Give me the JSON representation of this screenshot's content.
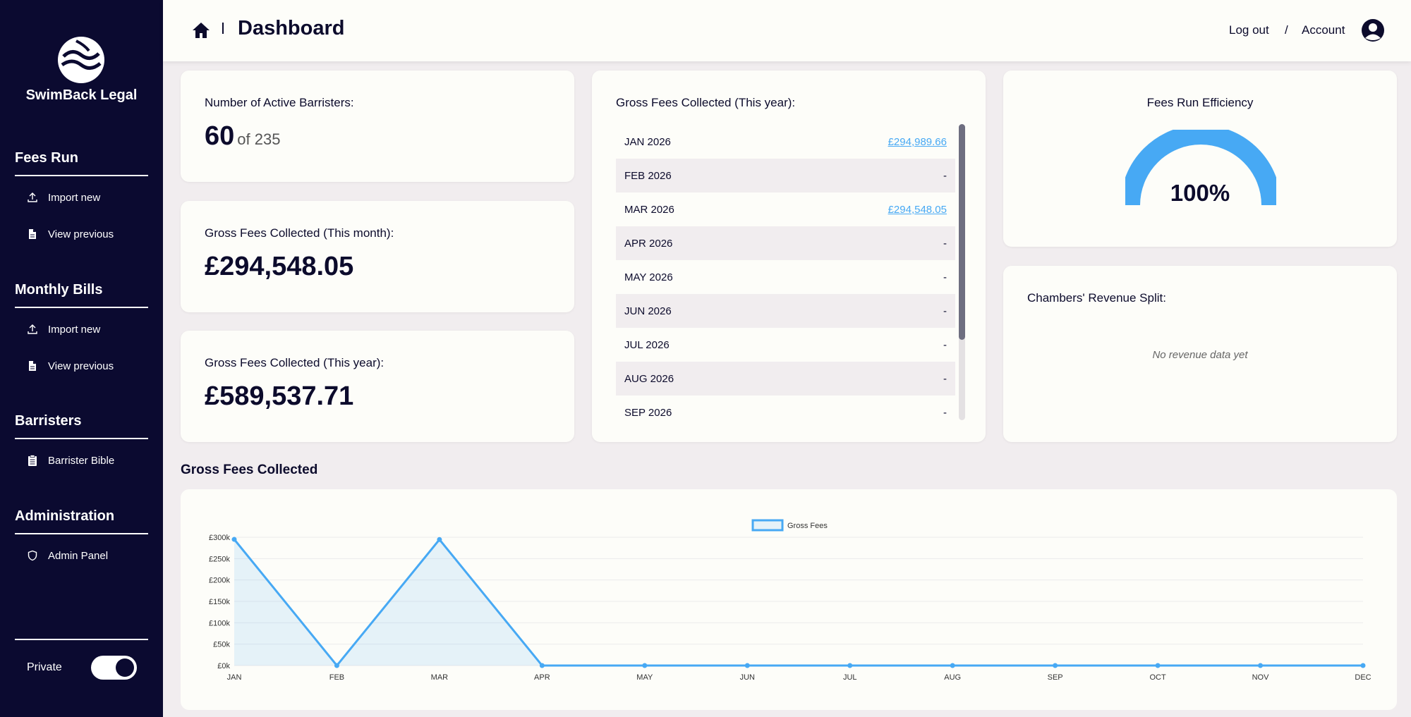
{
  "sidebar": {
    "brand": "SwimBack Legal",
    "sections": [
      {
        "title": "Fees Run",
        "items": [
          {
            "label": "Import new",
            "icon": "upload-icon"
          },
          {
            "label": "View previous",
            "icon": "file-icon"
          }
        ]
      },
      {
        "title": "Monthly Bills",
        "items": [
          {
            "label": "Import new",
            "icon": "upload-icon"
          },
          {
            "label": "View previous",
            "icon": "file-icon"
          }
        ]
      },
      {
        "title": "Barristers",
        "items": [
          {
            "label": "Barrister Bible",
            "icon": "clipboard-icon"
          }
        ]
      },
      {
        "title": "Administration",
        "items": [
          {
            "label": "Admin Panel",
            "icon": "shield-icon"
          }
        ]
      }
    ],
    "private_label": "Private",
    "private_toggle_on": true
  },
  "header": {
    "title": "Dashboard",
    "logout": "Log out",
    "separator": "/",
    "account": "Account"
  },
  "cards": {
    "barristers": {
      "label": "Number of Active Barristers:",
      "value": "60",
      "of": "of 235"
    },
    "month": {
      "label": "Gross Fees Collected (This month):",
      "value": "£294,548.05"
    },
    "year": {
      "label": "Gross Fees Collected (This year):",
      "value": "£589,537.71"
    },
    "monthly_list": {
      "label": "Gross Fees Collected (This year):",
      "rows": [
        {
          "month": "JAN 2026",
          "amount": "£294,989.66",
          "link": true
        },
        {
          "month": "FEB 2026",
          "amount": "-",
          "link": false
        },
        {
          "month": "MAR 2026",
          "amount": "£294,548.05",
          "link": true
        },
        {
          "month": "APR 2026",
          "amount": "-",
          "link": false
        },
        {
          "month": "MAY 2026",
          "amount": "-",
          "link": false
        },
        {
          "month": "JUN 2026",
          "amount": "-",
          "link": false
        },
        {
          "month": "JUL 2026",
          "amount": "-",
          "link": false
        },
        {
          "month": "AUG 2026",
          "amount": "-",
          "link": false
        },
        {
          "month": "SEP 2026",
          "amount": "-",
          "link": false
        }
      ]
    },
    "efficiency": {
      "label": "Fees Run Efficiency",
      "value": "100%",
      "percent": 100
    },
    "revenue_split": {
      "label": "Chambers' Revenue Split:",
      "empty": "No revenue data yet"
    }
  },
  "chart_section": {
    "title": "Gross Fees Collected"
  },
  "colors": {
    "accent": "#47a9f4",
    "sidebar": "#0b0a30"
  },
  "chart_data": {
    "type": "line",
    "title": "",
    "xlabel": "",
    "ylabel": "",
    "categories": [
      "JAN",
      "FEB",
      "MAR",
      "APR",
      "MAY",
      "JUN",
      "JUL",
      "AUG",
      "SEP",
      "OCT",
      "NOV",
      "DEC"
    ],
    "series": [
      {
        "name": "Gross Fees",
        "values": [
          294989.66,
          0,
          294548.05,
          0,
          0,
          0,
          0,
          0,
          0,
          0,
          0,
          0
        ]
      }
    ],
    "ylim": [
      0,
      300000
    ],
    "yticks": [
      "£0k",
      "£50k",
      "£100k",
      "£150k",
      "£200k",
      "£250k",
      "£300k"
    ],
    "fill": "area",
    "legend": "top-center",
    "grid": true
  }
}
